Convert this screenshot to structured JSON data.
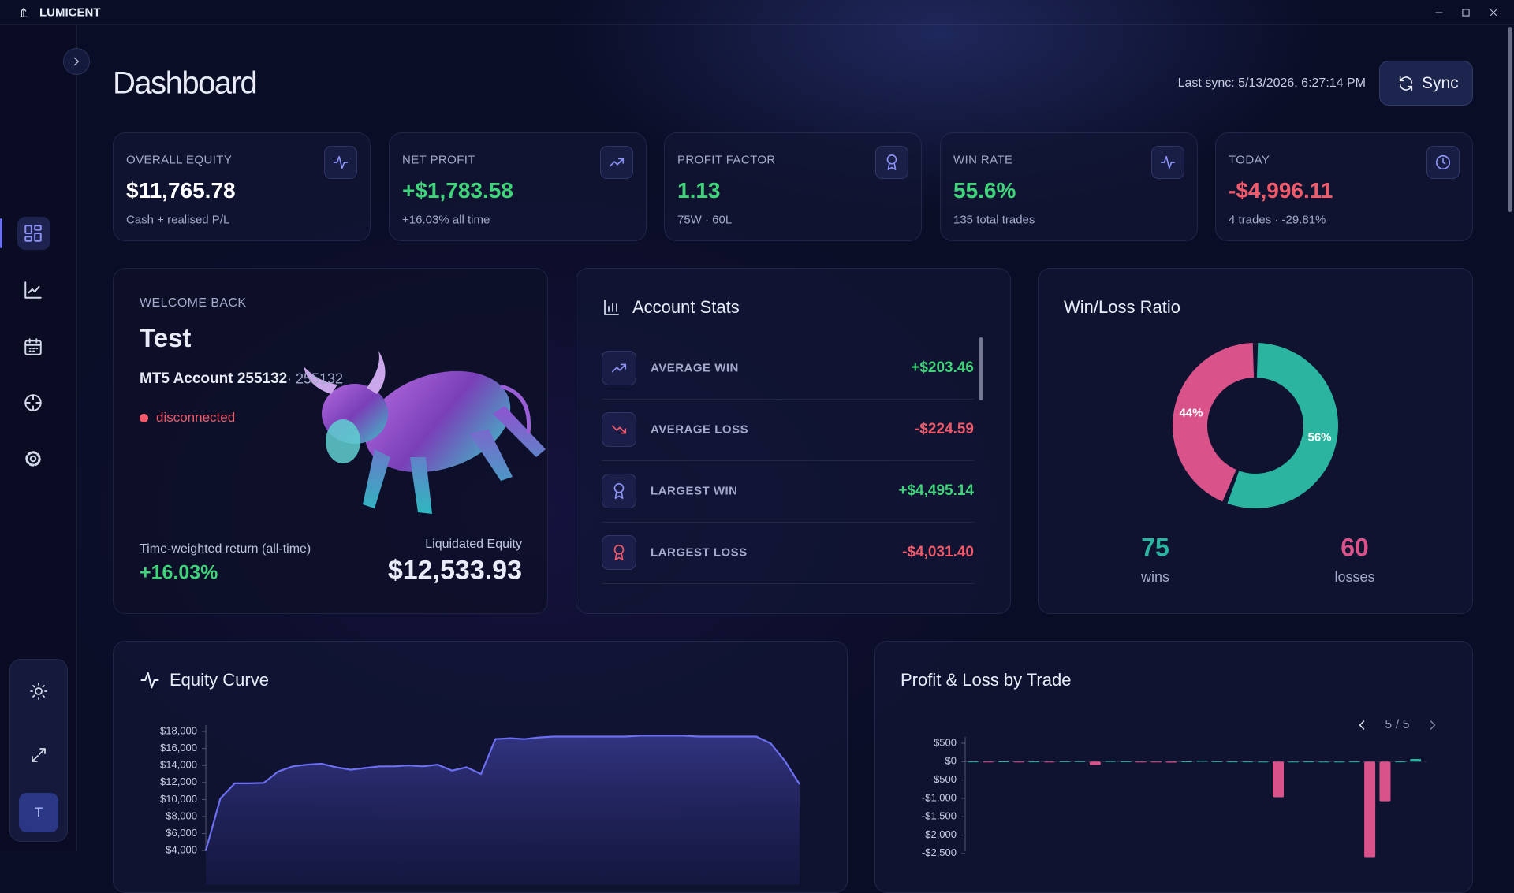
{
  "app": {
    "name": "LUMICENT"
  },
  "header": {
    "title": "Dashboard",
    "last_sync": "Last sync: 5/13/2026, 6:27:14 PM",
    "sync_button": "Sync"
  },
  "kpis": [
    {
      "label": "OVERALL EQUITY",
      "value": "$11,765.78",
      "sub": "Cash + realised P/L"
    },
    {
      "label": "NET PROFIT",
      "value": "+$1,783.58",
      "sub": "+16.03% all time"
    },
    {
      "label": "PROFIT FACTOR",
      "value": "1.13",
      "sub": "75W · 60L"
    },
    {
      "label": "WIN RATE",
      "value": "55.6%",
      "sub": "135 total trades"
    },
    {
      "label": "TODAY",
      "value": "-$4,996.11",
      "sub": "4 trades · -29.81%"
    }
  ],
  "welcome": {
    "greeting": "WELCOME BACK",
    "name": "Test",
    "account": "MT5 Account 255132",
    "account_id": "· 255132",
    "status": "disconnected",
    "twr_label": "Time-weighted return (all-time)",
    "twr_value": "+16.03%",
    "liq_label": "Liquidated Equity",
    "liq_value": "$12,533.93"
  },
  "account_stats": {
    "title": "Account Stats",
    "rows": [
      {
        "label": "AVERAGE WIN",
        "value": "+$203.46"
      },
      {
        "label": "AVERAGE LOSS",
        "value": "-$224.59"
      },
      {
        "label": "LARGEST WIN",
        "value": "+$4,495.14"
      },
      {
        "label": "LARGEST LOSS",
        "value": "-$4,031.40"
      }
    ]
  },
  "pnl_pager": "5 / 5",
  "user": {
    "initial": "T"
  },
  "chart_data": [
    {
      "type": "line",
      "title": "Equity Curve",
      "color": "#6d6ff2",
      "values": [
        4000,
        10100,
        11900,
        11900,
        11950,
        13300,
        13900,
        14100,
        14200,
        13800,
        13500,
        13700,
        13900,
        13900,
        14000,
        13900,
        14100,
        13400,
        13800,
        13000,
        17100,
        17200,
        17100,
        17300,
        17400,
        17400,
        17400,
        17400,
        17400,
        17400,
        17500,
        17500,
        17500,
        17500,
        17400,
        17400,
        17400,
        17400,
        17400,
        16600,
        14500,
        11800
      ],
      "ylim": [
        0,
        18000
      ],
      "yticks": [
        {
          "value": 4000,
          "label": "$4,000"
        },
        {
          "value": 6000,
          "label": "$6,000"
        },
        {
          "value": 8000,
          "label": "$8,000"
        },
        {
          "value": 10000,
          "label": "$10,000"
        },
        {
          "value": 12000,
          "label": "$12,000"
        },
        {
          "value": 14000,
          "label": "$14,000"
        },
        {
          "value": 16000,
          "label": "$16,000"
        },
        {
          "value": 18000,
          "label": "$18,000"
        }
      ]
    },
    {
      "type": "bar",
      "title": "Profit & Loss by Trade",
      "positive_color": "#2bb5a0",
      "negative_color": "#d9528a",
      "values": [
        5,
        -8,
        6,
        -10,
        4,
        -6,
        8,
        12,
        -90,
        15,
        10,
        -12,
        -9,
        -25,
        6,
        20,
        9,
        5,
        3,
        2,
        -970,
        2,
        3,
        2,
        2,
        3,
        -2600,
        -1080,
        4,
        70
      ],
      "ylim": [
        -3000,
        500
      ],
      "yticks": [
        {
          "value": 500,
          "label": "$500"
        },
        {
          "value": 0,
          "label": "$0"
        },
        {
          "value": -500,
          "label": "-$500"
        },
        {
          "value": -1000,
          "label": "-$1,000"
        },
        {
          "value": -1500,
          "label": "-$1,500"
        },
        {
          "value": -2000,
          "label": "-$2,000"
        },
        {
          "value": -2500,
          "label": "-$2,500"
        }
      ]
    },
    {
      "type": "pie",
      "title": "Win/Loss Ratio",
      "categories": [
        "wins",
        "losses"
      ],
      "values": [
        56,
        44
      ],
      "value_labels": [
        "56%",
        "44%"
      ],
      "counts": [
        75,
        60
      ],
      "colors": [
        "#2bb5a0",
        "#d9528a"
      ]
    }
  ]
}
